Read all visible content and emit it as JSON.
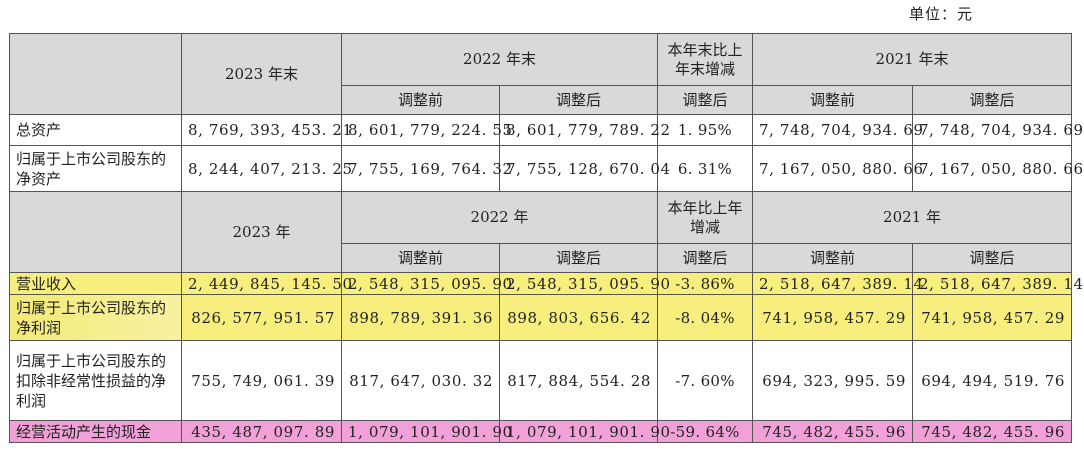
{
  "unit_label": "单位：元",
  "balance_section": {
    "h_2023": "2023 年末",
    "h_2022": "2022 年末",
    "h_change": "本年末比上年末增减",
    "h_2021": "2021 年末",
    "sub_before": "调整前",
    "sub_after": "调整后",
    "sub_change_after": "调整后",
    "sub_before_2021": "调整前",
    "sub_after_2021": "调整后",
    "rows": [
      {
        "label": "总资产",
        "v2023": "8, 769, 393, 453. 21",
        "v2022_before": "8, 601, 779, 224. 55",
        "v2022_after": "8, 601, 779, 789. 22",
        "change": "1. 95%",
        "v2021_before": "7, 748, 704, 934. 69",
        "v2021_after": "7, 748, 704, 934. 69"
      },
      {
        "label": "归属于上市公司股东的净资产",
        "v2023": "8, 244, 407, 213. 25",
        "v2022_before": "7, 755, 169, 764. 32",
        "v2022_after": "7, 755, 128, 670. 04",
        "change": "6. 31%",
        "v2021_before": "7, 167, 050, 880. 66",
        "v2021_after": "7, 167, 050, 880. 66"
      }
    ]
  },
  "income_section": {
    "h_2023": "2023 年",
    "h_2022": "2022 年",
    "h_change": "本年比上年增减",
    "h_2021": "2021 年",
    "sub_before": "调整前",
    "sub_after": "调整后",
    "sub_change_after": "调整后",
    "sub_before_2021": "调整前",
    "sub_after_2021": "调整后",
    "rows": [
      {
        "label": "营业收入",
        "v2023": "2, 449, 845, 145. 50",
        "v2022_before": "2, 548, 315, 095. 90",
        "v2022_after": "2, 548, 315, 095. 90",
        "change": "-3. 86%",
        "v2021_before": "2, 518, 647, 389. 14",
        "v2021_after": "2, 518, 647, 389. 14"
      },
      {
        "label": "归属于上市公司股东的净利润",
        "v2023": "826, 577, 951. 57",
        "v2022_before": "898, 789, 391. 36",
        "v2022_after": "898, 803, 656. 42",
        "change": "-8. 04%",
        "v2021_before": "741, 958, 457. 29",
        "v2021_after": "741, 958, 457. 29"
      },
      {
        "label": "归属于上市公司股东的扣除非经常性损益的净利润",
        "v2023": "755, 749, 061. 39",
        "v2022_before": "817, 647, 030. 32",
        "v2022_after": "817, 884, 554. 28",
        "change": "-7. 60%",
        "v2021_before": "694, 323, 995. 59",
        "v2021_after": "694, 494, 519. 76"
      },
      {
        "label": "经营活动产生的现金",
        "v2023": "435, 487, 097. 89",
        "v2022_before": "1, 079, 101, 901. 90",
        "v2022_after": "1, 079, 101, 901. 90",
        "change": "-59. 64%",
        "v2021_before": "745, 482, 455. 96",
        "v2021_after": "745, 482, 455. 96"
      }
    ]
  },
  "highlight_colors": {
    "yellow": "#f7ee7d",
    "pink": "#f2a1d8",
    "header_gray": "#d9d9d9"
  }
}
